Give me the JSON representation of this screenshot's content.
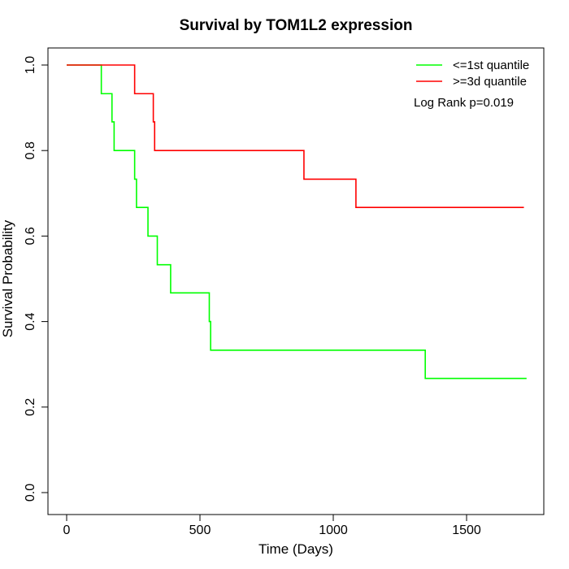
{
  "chart_data": {
    "type": "line",
    "step": true,
    "title": "Survival by TOM1L2 expression",
    "xlabel": "Time (Days)",
    "ylabel": "Survival Probability",
    "xlim": [
      0,
      1730
    ],
    "ylim": [
      0,
      1
    ],
    "x_ticks": [
      0,
      500,
      1000,
      1500
    ],
    "y_ticks": [
      0.0,
      0.2,
      0.4,
      0.6,
      0.8,
      1.0
    ],
    "x_tick_labels": [
      "0",
      "500",
      "1000",
      "1500"
    ],
    "y_tick_labels": [
      "0.0",
      "0.2",
      "0.4",
      "0.6",
      "0.8",
      "1.0"
    ],
    "grid": false,
    "legend_position": "top-right",
    "annotation": "Log Rank p=0.019",
    "series": [
      {
        "name": "<=1st quantile",
        "color": "#00ff00",
        "x": [
          0,
          130,
          170,
          178,
          255,
          262,
          305,
          340,
          390,
          535,
          540,
          1345,
          1725
        ],
        "y": [
          1.0,
          0.933,
          0.867,
          0.8,
          0.733,
          0.667,
          0.6,
          0.533,
          0.467,
          0.4,
          0.333,
          0.267,
          0.267
        ]
      },
      {
        "name": ">=3d quantile",
        "color": "#ff0000",
        "x": [
          0,
          255,
          325,
          330,
          890,
          1085,
          1715
        ],
        "y": [
          1.0,
          0.933,
          0.867,
          0.8,
          0.733,
          0.667,
          0.667
        ]
      }
    ]
  }
}
